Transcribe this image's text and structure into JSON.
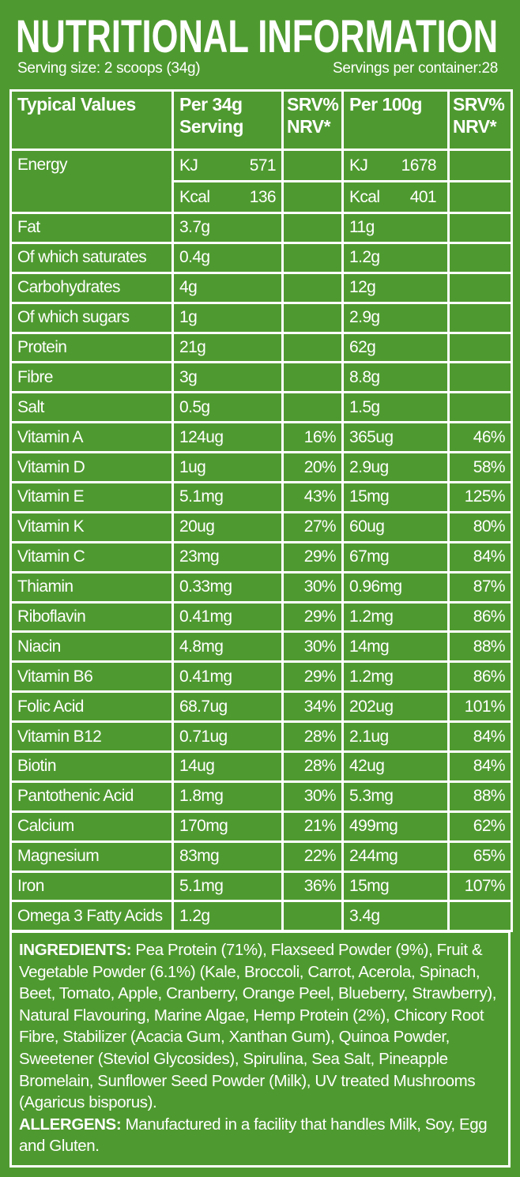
{
  "header": {
    "title": "NUTRITIONAL INFORMATION",
    "serving_size": "Serving size: 2 scoops (34g)",
    "servings_per_container": "Servings per container:28"
  },
  "table": {
    "columns": [
      "Typical Values",
      "Per 34g Serving",
      "SRV% NRV*",
      "Per 100g",
      "SRV% NRV*"
    ],
    "energy": {
      "label": "Energy",
      "lines": [
        {
          "unit": "KJ",
          "per_serving": "571",
          "per_100g": "1678"
        },
        {
          "unit": "Kcal",
          "per_serving": "136",
          "per_100g": "401"
        }
      ]
    },
    "rows": [
      {
        "lines": [
          {
            "label": "Fat",
            "per_serving": "3.7g",
            "per_100g": "11g"
          },
          {
            "label": "Of which saturates",
            "per_serving": "0.4g",
            "per_100g": "1.2g"
          }
        ]
      },
      {
        "lines": [
          {
            "label": "Carbohydrates",
            "per_serving": "4g",
            "per_100g": "12g"
          },
          {
            "label": "Of which sugars",
            "per_serving": "1g",
            "per_100g": "2.9g"
          }
        ]
      },
      {
        "lines": [
          {
            "label": "Protein",
            "per_serving": "21g",
            "per_100g": "62g"
          }
        ]
      },
      {
        "lines": [
          {
            "label": "Fibre",
            "per_serving": "3g",
            "per_100g": "8.8g"
          }
        ]
      },
      {
        "lines": [
          {
            "label": "Salt",
            "per_serving": "0.5g",
            "per_100g": "1.5g"
          }
        ]
      },
      {
        "lines": [
          {
            "label": "Vitamin A",
            "per_serving": "124ug",
            "srv_serving": "16%",
            "per_100g": "365ug",
            "srv_100g": "46%"
          }
        ]
      },
      {
        "lines": [
          {
            "label": "Vitamin D",
            "per_serving": "1ug",
            "srv_serving": "20%",
            "per_100g": "2.9ug",
            "srv_100g": "58%"
          }
        ]
      },
      {
        "lines": [
          {
            "label": "Vitamin E",
            "per_serving": "5.1mg",
            "srv_serving": "43%",
            "per_100g": "15mg",
            "srv_100g": "125%"
          }
        ]
      },
      {
        "lines": [
          {
            "label": "Vitamin K",
            "per_serving": "20ug",
            "srv_serving": "27%",
            "per_100g": "60ug",
            "srv_100g": "80%"
          }
        ]
      },
      {
        "lines": [
          {
            "label": "Vitamin C",
            "per_serving": "23mg",
            "srv_serving": "29%",
            "per_100g": "67mg",
            "srv_100g": "84%"
          }
        ]
      },
      {
        "lines": [
          {
            "label": "Thiamin",
            "per_serving": "0.33mg",
            "srv_serving": "30%",
            "per_100g": "0.96mg",
            "srv_100g": "87%"
          }
        ]
      },
      {
        "lines": [
          {
            "label": "Riboflavin",
            "per_serving": "0.41mg",
            "srv_serving": "29%",
            "per_100g": "1.2mg",
            "srv_100g": "86%"
          }
        ]
      },
      {
        "lines": [
          {
            "label": "Niacin",
            "per_serving": "4.8mg",
            "srv_serving": "30%",
            "per_100g": "14mg",
            "srv_100g": "88%"
          }
        ]
      },
      {
        "lines": [
          {
            "label": "Vitamin B6",
            "per_serving": "0.41mg",
            "srv_serving": "29%",
            "per_100g": "1.2mg",
            "srv_100g": "86%"
          }
        ]
      },
      {
        "lines": [
          {
            "label": "Folic Acid",
            "per_serving": "68.7ug",
            "srv_serving": "34%",
            "per_100g": "202ug",
            "srv_100g": "101%"
          }
        ]
      },
      {
        "lines": [
          {
            "label": "Vitamin B12",
            "per_serving": "0.71ug",
            "srv_serving": "28%",
            "per_100g": "2.1ug",
            "srv_100g": "84%"
          }
        ]
      },
      {
        "lines": [
          {
            "label": "Biotin",
            "per_serving": "14ug",
            "srv_serving": "28%",
            "per_100g": "42ug",
            "srv_100g": "84%"
          }
        ]
      },
      {
        "lines": [
          {
            "label": "Pantothenic Acid",
            "per_serving": "1.8mg",
            "srv_serving": "30%",
            "per_100g": "5.3mg",
            "srv_100g": "88%"
          }
        ]
      },
      {
        "lines": [
          {
            "label": "Calcium",
            "per_serving": "170mg",
            "srv_serving": "21%",
            "per_100g": "499mg",
            "srv_100g": "62%"
          }
        ]
      },
      {
        "lines": [
          {
            "label": "Magnesium",
            "per_serving": "83mg",
            "srv_serving": "22%",
            "per_100g": "244mg",
            "srv_100g": "65%"
          }
        ]
      },
      {
        "lines": [
          {
            "label": "Iron",
            "per_serving": "5.1mg",
            "srv_serving": "36%",
            "per_100g": "15mg",
            "srv_100g": "107%"
          }
        ]
      },
      {
        "lines": [
          {
            "label": "Omega 3 Fatty Acids",
            "per_serving": "1.2g",
            "per_100g": "3.4g"
          }
        ]
      }
    ]
  },
  "ingredients": {
    "heading": "INGREDIENTS:",
    "text": "Pea Protein (71%), Flaxseed Powder (9%), Fruit & Vegetable Powder (6.1%) (Kale, Broccoli, Carrot, Acerola, Spinach, Beet, Tomato, Apple, Cranberry, Orange Peel, Blueberry, Strawberry), Natural Flavouring, Marine Algae, Hemp Protein (2%), Chicory Root Fibre, Stabilizer (Acacia Gum, Xanthan Gum), Quinoa Powder, Sweetener (Steviol Glycosides), Spirulina, Sea Salt, Pineapple Bromelain, Sunflower Seed Powder (Milk), UV treated Mushrooms (Agaricus bisporus)."
  },
  "allergens": {
    "heading": "ALLERGENS:",
    "text": "Manufactured in a facility that handles Milk, Soy, Egg and Gluten."
  }
}
